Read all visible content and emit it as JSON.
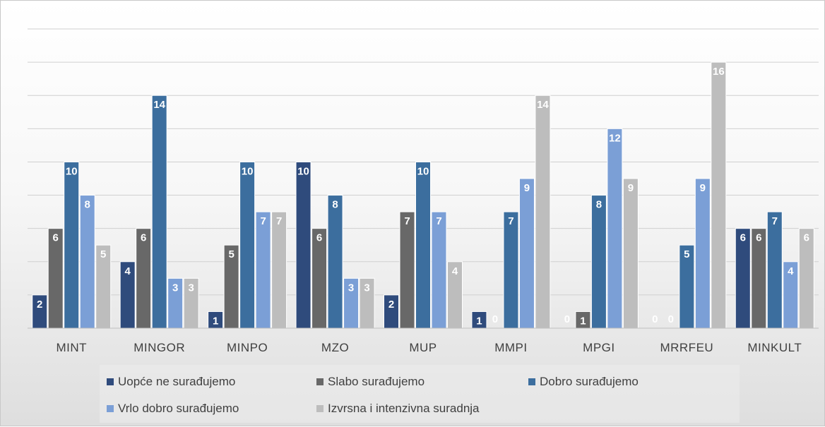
{
  "chart_data": {
    "type": "bar",
    "categories": [
      "MINT",
      "MINGOR",
      "MINPO",
      "MZO",
      "MUP",
      "MMPI",
      "MPGI",
      "MRRFEU",
      "MINKULT"
    ],
    "series": [
      {
        "name": "Uopće ne surađujemo",
        "color": "#2f4b7c",
        "values": [
          2,
          4,
          1,
          10,
          2,
          1,
          0,
          0,
          6
        ]
      },
      {
        "name": "Slabo surađujemo",
        "color": "#686868",
        "values": [
          6,
          6,
          5,
          6,
          7,
          0,
          1,
          0,
          6
        ]
      },
      {
        "name": "Dobro surađujemo",
        "color": "#3c6e9e",
        "values": [
          10,
          14,
          10,
          8,
          10,
          7,
          8,
          5,
          7
        ]
      },
      {
        "name": "Vrlo dobro surađujemo",
        "color": "#7b9fd6",
        "values": [
          8,
          3,
          7,
          3,
          7,
          9,
          12,
          9,
          4
        ]
      },
      {
        "name": "Izvrsna i intenzivna suradnja",
        "color": "#bdbdbd",
        "values": [
          5,
          3,
          7,
          3,
          4,
          14,
          9,
          16,
          6
        ]
      }
    ],
    "ylim": [
      0,
      18
    ],
    "grid": true,
    "legend_position": "bottom"
  }
}
